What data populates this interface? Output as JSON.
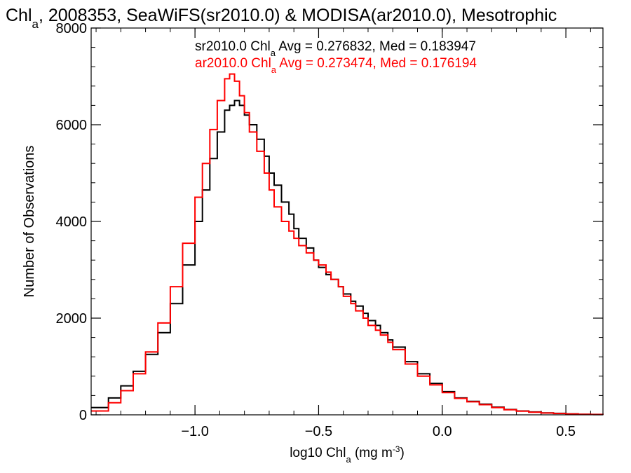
{
  "chart_data": {
    "type": "line",
    "title": {
      "part1": "Chl",
      "sub": "a",
      "part2": ", 2008353, SeaWiFS(sr2010.0) & MODISA(ar2010.0), Mesotrophic"
    },
    "xlabel": {
      "part1": "log10 Chl",
      "sub": "a",
      "part2": " (mg m",
      "sup": "-3",
      "part3": ")"
    },
    "ylabel": "Number of Observations",
    "xlim": [
      -1.42,
      0.65
    ],
    "ylim": [
      0,
      8000
    ],
    "x_ticks": [
      {
        "value": -1.0,
        "label": "−1.0"
      },
      {
        "value": -0.5,
        "label": "−0.5"
      },
      {
        "value": 0.0,
        "label": "0.0"
      },
      {
        "value": 0.5,
        "label": "0.5"
      }
    ],
    "y_ticks": [
      {
        "value": 0,
        "label": "0"
      },
      {
        "value": 2000,
        "label": "2000"
      },
      {
        "value": 4000,
        "label": "4000"
      },
      {
        "value": 6000,
        "label": "6000"
      },
      {
        "value": 8000,
        "label": "8000"
      }
    ],
    "series": [
      {
        "name": "sr2010.0",
        "color": "#000000",
        "legend": {
          "part1": "sr2010.0 Chl",
          "sub": "a",
          "part2": " Avg = 0.276832, Med = 0.183947"
        },
        "x": [
          -1.42,
          -1.35,
          -1.3,
          -1.25,
          -1.2,
          -1.15,
          -1.1,
          -1.05,
          -1.0,
          -0.97,
          -0.94,
          -0.91,
          -0.88,
          -0.86,
          -0.84,
          -0.82,
          -0.8,
          -0.78,
          -0.75,
          -0.72,
          -0.7,
          -0.68,
          -0.65,
          -0.62,
          -0.6,
          -0.58,
          -0.55,
          -0.52,
          -0.5,
          -0.47,
          -0.45,
          -0.42,
          -0.4,
          -0.37,
          -0.35,
          -0.32,
          -0.3,
          -0.27,
          -0.25,
          -0.22,
          -0.2,
          -0.15,
          -0.1,
          -0.05,
          0.0,
          0.05,
          0.1,
          0.15,
          0.2,
          0.25,
          0.3,
          0.35,
          0.4,
          0.45,
          0.5,
          0.55,
          0.6,
          0.65
        ],
        "values": [
          150,
          350,
          600,
          900,
          1250,
          1700,
          2300,
          3100,
          4000,
          4650,
          5300,
          5850,
          6300,
          6400,
          6500,
          6400,
          6200,
          6000,
          5700,
          5350,
          5000,
          4750,
          4400,
          4150,
          3850,
          3650,
          3450,
          3200,
          3050,
          2900,
          2800,
          2650,
          2500,
          2350,
          2250,
          2100,
          1950,
          1850,
          1700,
          1550,
          1400,
          1100,
          850,
          650,
          480,
          350,
          280,
          220,
          160,
          110,
          80,
          60,
          40,
          30,
          20,
          12,
          8,
          5
        ]
      },
      {
        "name": "ar2010.0",
        "color": "#ff0000",
        "legend": {
          "part1": "ar2010.0 Chl",
          "sub": "a",
          "part2": " Avg = 0.273474, Med = 0.176194"
        },
        "x": [
          -1.42,
          -1.35,
          -1.3,
          -1.25,
          -1.2,
          -1.15,
          -1.1,
          -1.05,
          -1.0,
          -0.97,
          -0.94,
          -0.91,
          -0.88,
          -0.86,
          -0.84,
          -0.82,
          -0.8,
          -0.78,
          -0.75,
          -0.72,
          -0.7,
          -0.68,
          -0.65,
          -0.62,
          -0.6,
          -0.58,
          -0.55,
          -0.52,
          -0.5,
          -0.47,
          -0.45,
          -0.42,
          -0.4,
          -0.37,
          -0.35,
          -0.32,
          -0.3,
          -0.27,
          -0.25,
          -0.22,
          -0.2,
          -0.15,
          -0.1,
          -0.05,
          0.0,
          0.05,
          0.1,
          0.15,
          0.2,
          0.25,
          0.3,
          0.35,
          0.4,
          0.45,
          0.5,
          0.55,
          0.6,
          0.65
        ],
        "values": [
          80,
          250,
          500,
          850,
          1300,
          1900,
          2650,
          3550,
          4500,
          5200,
          5900,
          6500,
          6950,
          7050,
          6900,
          6600,
          6250,
          5850,
          5450,
          5000,
          4650,
          4300,
          4000,
          3800,
          3650,
          3500,
          3350,
          3200,
          3100,
          2950,
          2800,
          2650,
          2450,
          2300,
          2150,
          2000,
          1850,
          1750,
          1650,
          1500,
          1350,
          1050,
          800,
          620,
          460,
          340,
          270,
          210,
          150,
          105,
          75,
          55,
          38,
          28,
          18,
          11,
          7,
          4
        ]
      }
    ]
  }
}
